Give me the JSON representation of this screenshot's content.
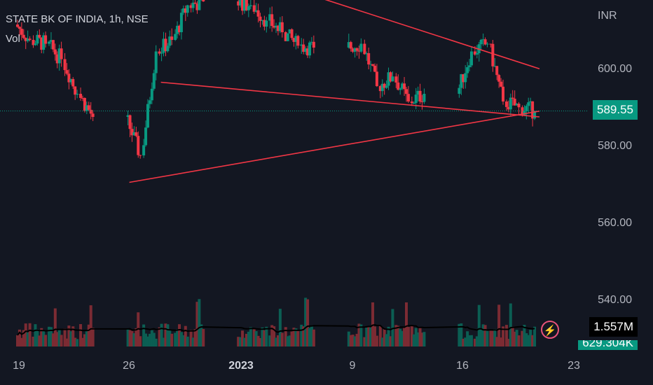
{
  "header": {
    "title": "STATE BK OF INDIA, 1h, NSE",
    "volume_label": "Vol",
    "currency": "INR"
  },
  "chart_data": {
    "type": "candlestick",
    "symbol": "STATE BK OF INDIA",
    "interval": "1h",
    "exchange": "NSE",
    "colors": {
      "up": "#089981",
      "down": "#f23645",
      "trendline": "#f23645",
      "price_line": "#089981",
      "vol_up": "#0b5e53",
      "vol_down": "#7c2b33"
    },
    "y_axis": {
      "range": [
        530,
        622
      ],
      "ticks": [
        "600.00",
        "580.00",
        "560.00",
        "540.00"
      ]
    },
    "x_axis": {
      "ticks": [
        "19",
        "26",
        "2023",
        "9",
        "16",
        "23"
      ]
    },
    "last_price": "589.55",
    "volume_label": "1.557M",
    "volume_ma_label_partial": "629.304K",
    "dates": [
      "2022-12-19",
      "2022-12-20",
      "2022-12-21",
      "2022-12-22",
      "2022-12-23",
      "2022-12-26",
      "2022-12-27",
      "2022-12-28",
      "2022-12-29",
      "2022-12-30",
      "2023-01-02",
      "2023-01-03",
      "2023-01-04",
      "2023-01-05",
      "2023-01-06",
      "2023-01-09",
      "2023-01-10",
      "2023-01-11",
      "2023-01-12",
      "2023-01-13",
      "2023-01-16",
      "2023-01-17",
      "2023-01-18",
      "2023-01-19",
      "2023-01-20"
    ],
    "daily_closes": [
      608.0,
      607.0,
      603.0,
      594.0,
      588.0,
      578.0,
      605.0,
      608.0,
      617.0,
      618.0,
      617.0,
      613.0,
      610.0,
      606.5,
      606.0,
      607.0,
      596.0,
      598.5,
      592.0,
      594.0,
      605.0,
      607.0,
      592.0,
      590.5,
      589.55
    ],
    "trendlines": [
      {
        "from": [
          "2023-01-04",
          623.0
        ],
        "to": [
          "2023-01-21",
          600.5
        ]
      },
      {
        "from": [
          "2022-12-28",
          597.0
        ],
        "to": [
          "2023-01-21",
          588.0
        ]
      },
      {
        "from": [
          "2022-12-26",
          571.0
        ],
        "to": [
          "2023-01-21",
          589.5
        ]
      }
    ]
  }
}
